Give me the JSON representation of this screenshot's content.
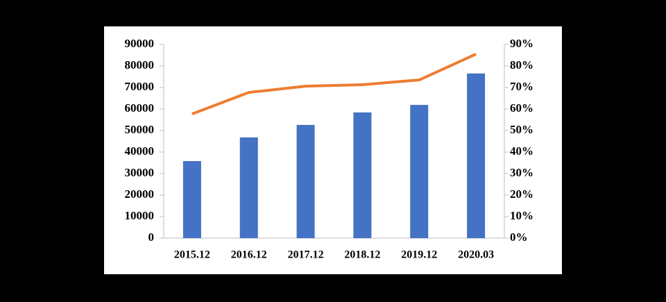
{
  "chart_data": {
    "type": "bar-line",
    "categories": [
      "2015.12",
      "2016.12",
      "2017.12",
      "2018.12",
      "2019.12",
      "2020.03"
    ],
    "series": [
      {
        "type": "bar",
        "color": "#4472c4",
        "values": [
          35800,
          46800,
          52600,
          58400,
          61900,
          76500
        ]
      },
      {
        "type": "line",
        "axis": "y2",
        "color": "#ed7d31",
        "values": [
          57.7,
          67.7,
          70.6,
          71.3,
          73.5,
          85.5
        ]
      }
    ],
    "ylim": [
      0,
      90000
    ],
    "yticks": [
      0,
      10000,
      20000,
      30000,
      40000,
      50000,
      60000,
      70000,
      80000,
      90000
    ],
    "y2lim": [
      0,
      90
    ],
    "y2ticks": [
      {
        "value": 0,
        "label": "0%"
      },
      {
        "value": 10,
        "label": "10%"
      },
      {
        "value": 20,
        "label": "20%"
      },
      {
        "value": 30,
        "label": "30%"
      },
      {
        "value": 40,
        "label": "40%"
      },
      {
        "value": 50,
        "label": "50%"
      },
      {
        "value": 60,
        "label": "60%"
      },
      {
        "value": 70,
        "label": "70%"
      },
      {
        "value": 80,
        "label": "80%"
      },
      {
        "value": 90,
        "label": "90%"
      }
    ]
  }
}
